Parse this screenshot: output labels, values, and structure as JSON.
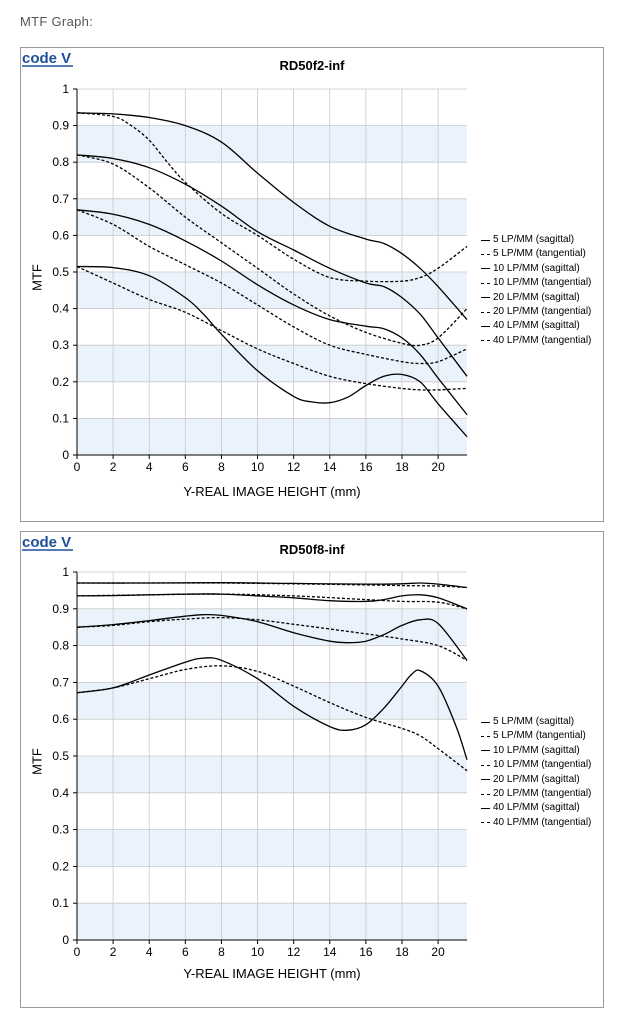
{
  "page": {
    "heading": "MTF Graph:"
  },
  "colors": {
    "band": "#eaf3fc",
    "grid": "#c8c8c8",
    "curve": "#000000",
    "logo": "#1f4f9a"
  },
  "logo": {
    "text": "code V"
  },
  "chart_data": [
    {
      "type": "line",
      "title": "RD50f2-inf",
      "xlabel": "Y-REAL IMAGE HEIGHT (mm)",
      "ylabel": "MTF",
      "xlim": [
        0,
        21.6
      ],
      "ylim": [
        0,
        1
      ],
      "xticks": [
        "0",
        "2",
        "4",
        "6",
        "8",
        "10",
        "12",
        "14",
        "16",
        "18",
        "20"
      ],
      "yticks": [
        "0",
        "0.1",
        "0.2",
        "0.3",
        "0.4",
        "0.5",
        "0.6",
        "0.7",
        "0.8",
        "0.9",
        "1"
      ],
      "grid": true,
      "legend_position": "right",
      "legend": [
        "5 LP/MM (sagittal)",
        "5 LP/MM (tangential)",
        "10 LP/MM (sagittal)",
        "10 LP/MM (tangential)",
        "20 LP/MM (sagittal)",
        "20 LP/MM (tangential)",
        "40 LP/MM (sagittal)",
        "40 LP/MM (tangential)"
      ],
      "series": [
        {
          "name": "5 LP/MM (sagittal)",
          "style": "solid",
          "x": [
            0,
            2,
            4,
            6,
            8,
            10,
            12,
            14,
            16,
            17,
            18,
            19,
            20,
            21.6
          ],
          "y": [
            0.935,
            0.932,
            0.922,
            0.9,
            0.855,
            0.77,
            0.69,
            0.625,
            0.59,
            0.578,
            0.55,
            0.51,
            0.46,
            0.37
          ]
        },
        {
          "name": "5 LP/MM (tangential)",
          "style": "dashed",
          "x": [
            0,
            2,
            3,
            4,
            5,
            6,
            8,
            10,
            12,
            14,
            16,
            18,
            19,
            20,
            21.6
          ],
          "y": [
            0.935,
            0.925,
            0.9,
            0.86,
            0.8,
            0.745,
            0.66,
            0.6,
            0.535,
            0.485,
            0.475,
            0.475,
            0.485,
            0.51,
            0.57
          ]
        },
        {
          "name": "10 LP/MM (sagittal)",
          "style": "solid",
          "x": [
            0,
            2,
            4,
            6,
            8,
            10,
            12,
            14,
            16,
            17,
            18,
            19,
            20,
            21.6
          ],
          "y": [
            0.82,
            0.81,
            0.785,
            0.74,
            0.68,
            0.61,
            0.56,
            0.51,
            0.47,
            0.46,
            0.43,
            0.385,
            0.32,
            0.215
          ]
        },
        {
          "name": "10 LP/MM (tangential)",
          "style": "dashed",
          "x": [
            0,
            2,
            4,
            6,
            8,
            10,
            12,
            14,
            16,
            18,
            19,
            20,
            21.6
          ],
          "y": [
            0.82,
            0.795,
            0.73,
            0.65,
            0.58,
            0.51,
            0.44,
            0.38,
            0.335,
            0.305,
            0.3,
            0.32,
            0.4
          ]
        },
        {
          "name": "20 LP/MM (sagittal)",
          "style": "solid",
          "x": [
            0,
            2,
            4,
            6,
            8,
            10,
            12,
            14,
            16,
            17,
            18,
            19,
            20,
            21.6
          ],
          "y": [
            0.67,
            0.658,
            0.63,
            0.585,
            0.53,
            0.465,
            0.41,
            0.37,
            0.352,
            0.345,
            0.32,
            0.275,
            0.21,
            0.11
          ]
        },
        {
          "name": "20 LP/MM (tangential)",
          "style": "dashed",
          "x": [
            0,
            2,
            4,
            6,
            8,
            10,
            12,
            14,
            16,
            18,
            19,
            20,
            21.6
          ],
          "y": [
            0.67,
            0.63,
            0.57,
            0.52,
            0.47,
            0.41,
            0.35,
            0.3,
            0.275,
            0.255,
            0.25,
            0.255,
            0.29
          ]
        },
        {
          "name": "40 LP/MM (sagittal)",
          "style": "solid",
          "x": [
            0,
            2,
            4,
            6,
            7,
            8,
            10,
            12,
            13,
            14,
            15,
            16,
            17,
            18,
            19,
            20,
            21.6
          ],
          "y": [
            0.515,
            0.512,
            0.49,
            0.43,
            0.385,
            0.33,
            0.23,
            0.16,
            0.145,
            0.143,
            0.158,
            0.19,
            0.215,
            0.22,
            0.2,
            0.14,
            0.05
          ]
        },
        {
          "name": "40 LP/MM (tangential)",
          "style": "dashed",
          "x": [
            0,
            2,
            4,
            6,
            8,
            10,
            12,
            14,
            16,
            18,
            19,
            20,
            21.6
          ],
          "y": [
            0.515,
            0.47,
            0.425,
            0.39,
            0.34,
            0.29,
            0.25,
            0.215,
            0.195,
            0.182,
            0.178,
            0.178,
            0.182
          ]
        }
      ]
    },
    {
      "type": "line",
      "title": "RD50f8-inf",
      "xlabel": "Y-REAL IMAGE HEIGHT (mm)",
      "ylabel": "MTF",
      "xlim": [
        0,
        21.6
      ],
      "ylim": [
        0,
        1
      ],
      "xticks": [
        "0",
        "2",
        "4",
        "6",
        "8",
        "10",
        "12",
        "14",
        "16",
        "18",
        "20"
      ],
      "yticks": [
        "0",
        "0.1",
        "0.2",
        "0.3",
        "0.4",
        "0.5",
        "0.6",
        "0.7",
        "0.8",
        "0.9",
        "1"
      ],
      "grid": true,
      "legend_position": "right",
      "legend": [
        "5 LP/MM (sagittal)",
        "5 LP/MM (tangential)",
        "10 LP/MM (sagittal)",
        "10 LP/MM (tangential)",
        "20 LP/MM (sagittal)",
        "20 LP/MM (tangential)",
        "40 LP/MM (sagittal)",
        "40 LP/MM (tangential)"
      ],
      "series": [
        {
          "name": "5 LP/MM (sagittal)",
          "style": "solid",
          "x": [
            0,
            4,
            8,
            12,
            16,
            18,
            19,
            20,
            21.6
          ],
          "y": [
            0.97,
            0.97,
            0.971,
            0.969,
            0.967,
            0.968,
            0.97,
            0.967,
            0.958
          ]
        },
        {
          "name": "5 LP/MM (tangential)",
          "style": "dashed",
          "x": [
            0,
            4,
            8,
            12,
            16,
            18,
            20,
            21.6
          ],
          "y": [
            0.97,
            0.97,
            0.97,
            0.968,
            0.965,
            0.963,
            0.962,
            0.958
          ]
        },
        {
          "name": "10 LP/MM (sagittal)",
          "style": "solid",
          "x": [
            0,
            2,
            4,
            6,
            8,
            10,
            12,
            14,
            16,
            17,
            18,
            19,
            20,
            21.6
          ],
          "y": [
            0.935,
            0.936,
            0.938,
            0.94,
            0.94,
            0.935,
            0.93,
            0.922,
            0.92,
            0.925,
            0.935,
            0.938,
            0.93,
            0.9
          ]
        },
        {
          "name": "10 LP/MM (tangential)",
          "style": "dashed",
          "x": [
            0,
            4,
            8,
            12,
            16,
            18,
            20,
            21.6
          ],
          "y": [
            0.935,
            0.938,
            0.94,
            0.935,
            0.925,
            0.92,
            0.918,
            0.9
          ]
        },
        {
          "name": "20 LP/MM (sagittal)",
          "style": "solid",
          "x": [
            0,
            2,
            4,
            6,
            7,
            8,
            10,
            12,
            14,
            15,
            16,
            17,
            18,
            19,
            20,
            21.6
          ],
          "y": [
            0.85,
            0.857,
            0.868,
            0.88,
            0.884,
            0.882,
            0.865,
            0.835,
            0.812,
            0.808,
            0.812,
            0.83,
            0.855,
            0.87,
            0.86,
            0.76
          ]
        },
        {
          "name": "20 LP/MM (tangential)",
          "style": "dashed",
          "x": [
            0,
            2,
            4,
            6,
            8,
            10,
            12,
            14,
            16,
            18,
            20,
            21.6
          ],
          "y": [
            0.85,
            0.855,
            0.865,
            0.872,
            0.876,
            0.87,
            0.858,
            0.845,
            0.832,
            0.818,
            0.8,
            0.76
          ]
        },
        {
          "name": "40 LP/MM (sagittal)",
          "style": "solid",
          "x": [
            0,
            2,
            4,
            6,
            7,
            8,
            10,
            12,
            14,
            15,
            16,
            17,
            18,
            18.5,
            19,
            20,
            21,
            21.6
          ],
          "y": [
            0.672,
            0.685,
            0.72,
            0.755,
            0.766,
            0.76,
            0.71,
            0.635,
            0.58,
            0.57,
            0.585,
            0.63,
            0.69,
            0.72,
            0.732,
            0.69,
            0.58,
            0.49
          ]
        },
        {
          "name": "40 LP/MM (tangential)",
          "style": "dashed",
          "x": [
            0,
            2,
            4,
            6,
            8,
            10,
            12,
            14,
            16,
            18,
            19,
            20,
            21.6
          ],
          "y": [
            0.672,
            0.685,
            0.71,
            0.735,
            0.745,
            0.73,
            0.69,
            0.645,
            0.605,
            0.575,
            0.555,
            0.52,
            0.46
          ]
        }
      ]
    }
  ]
}
